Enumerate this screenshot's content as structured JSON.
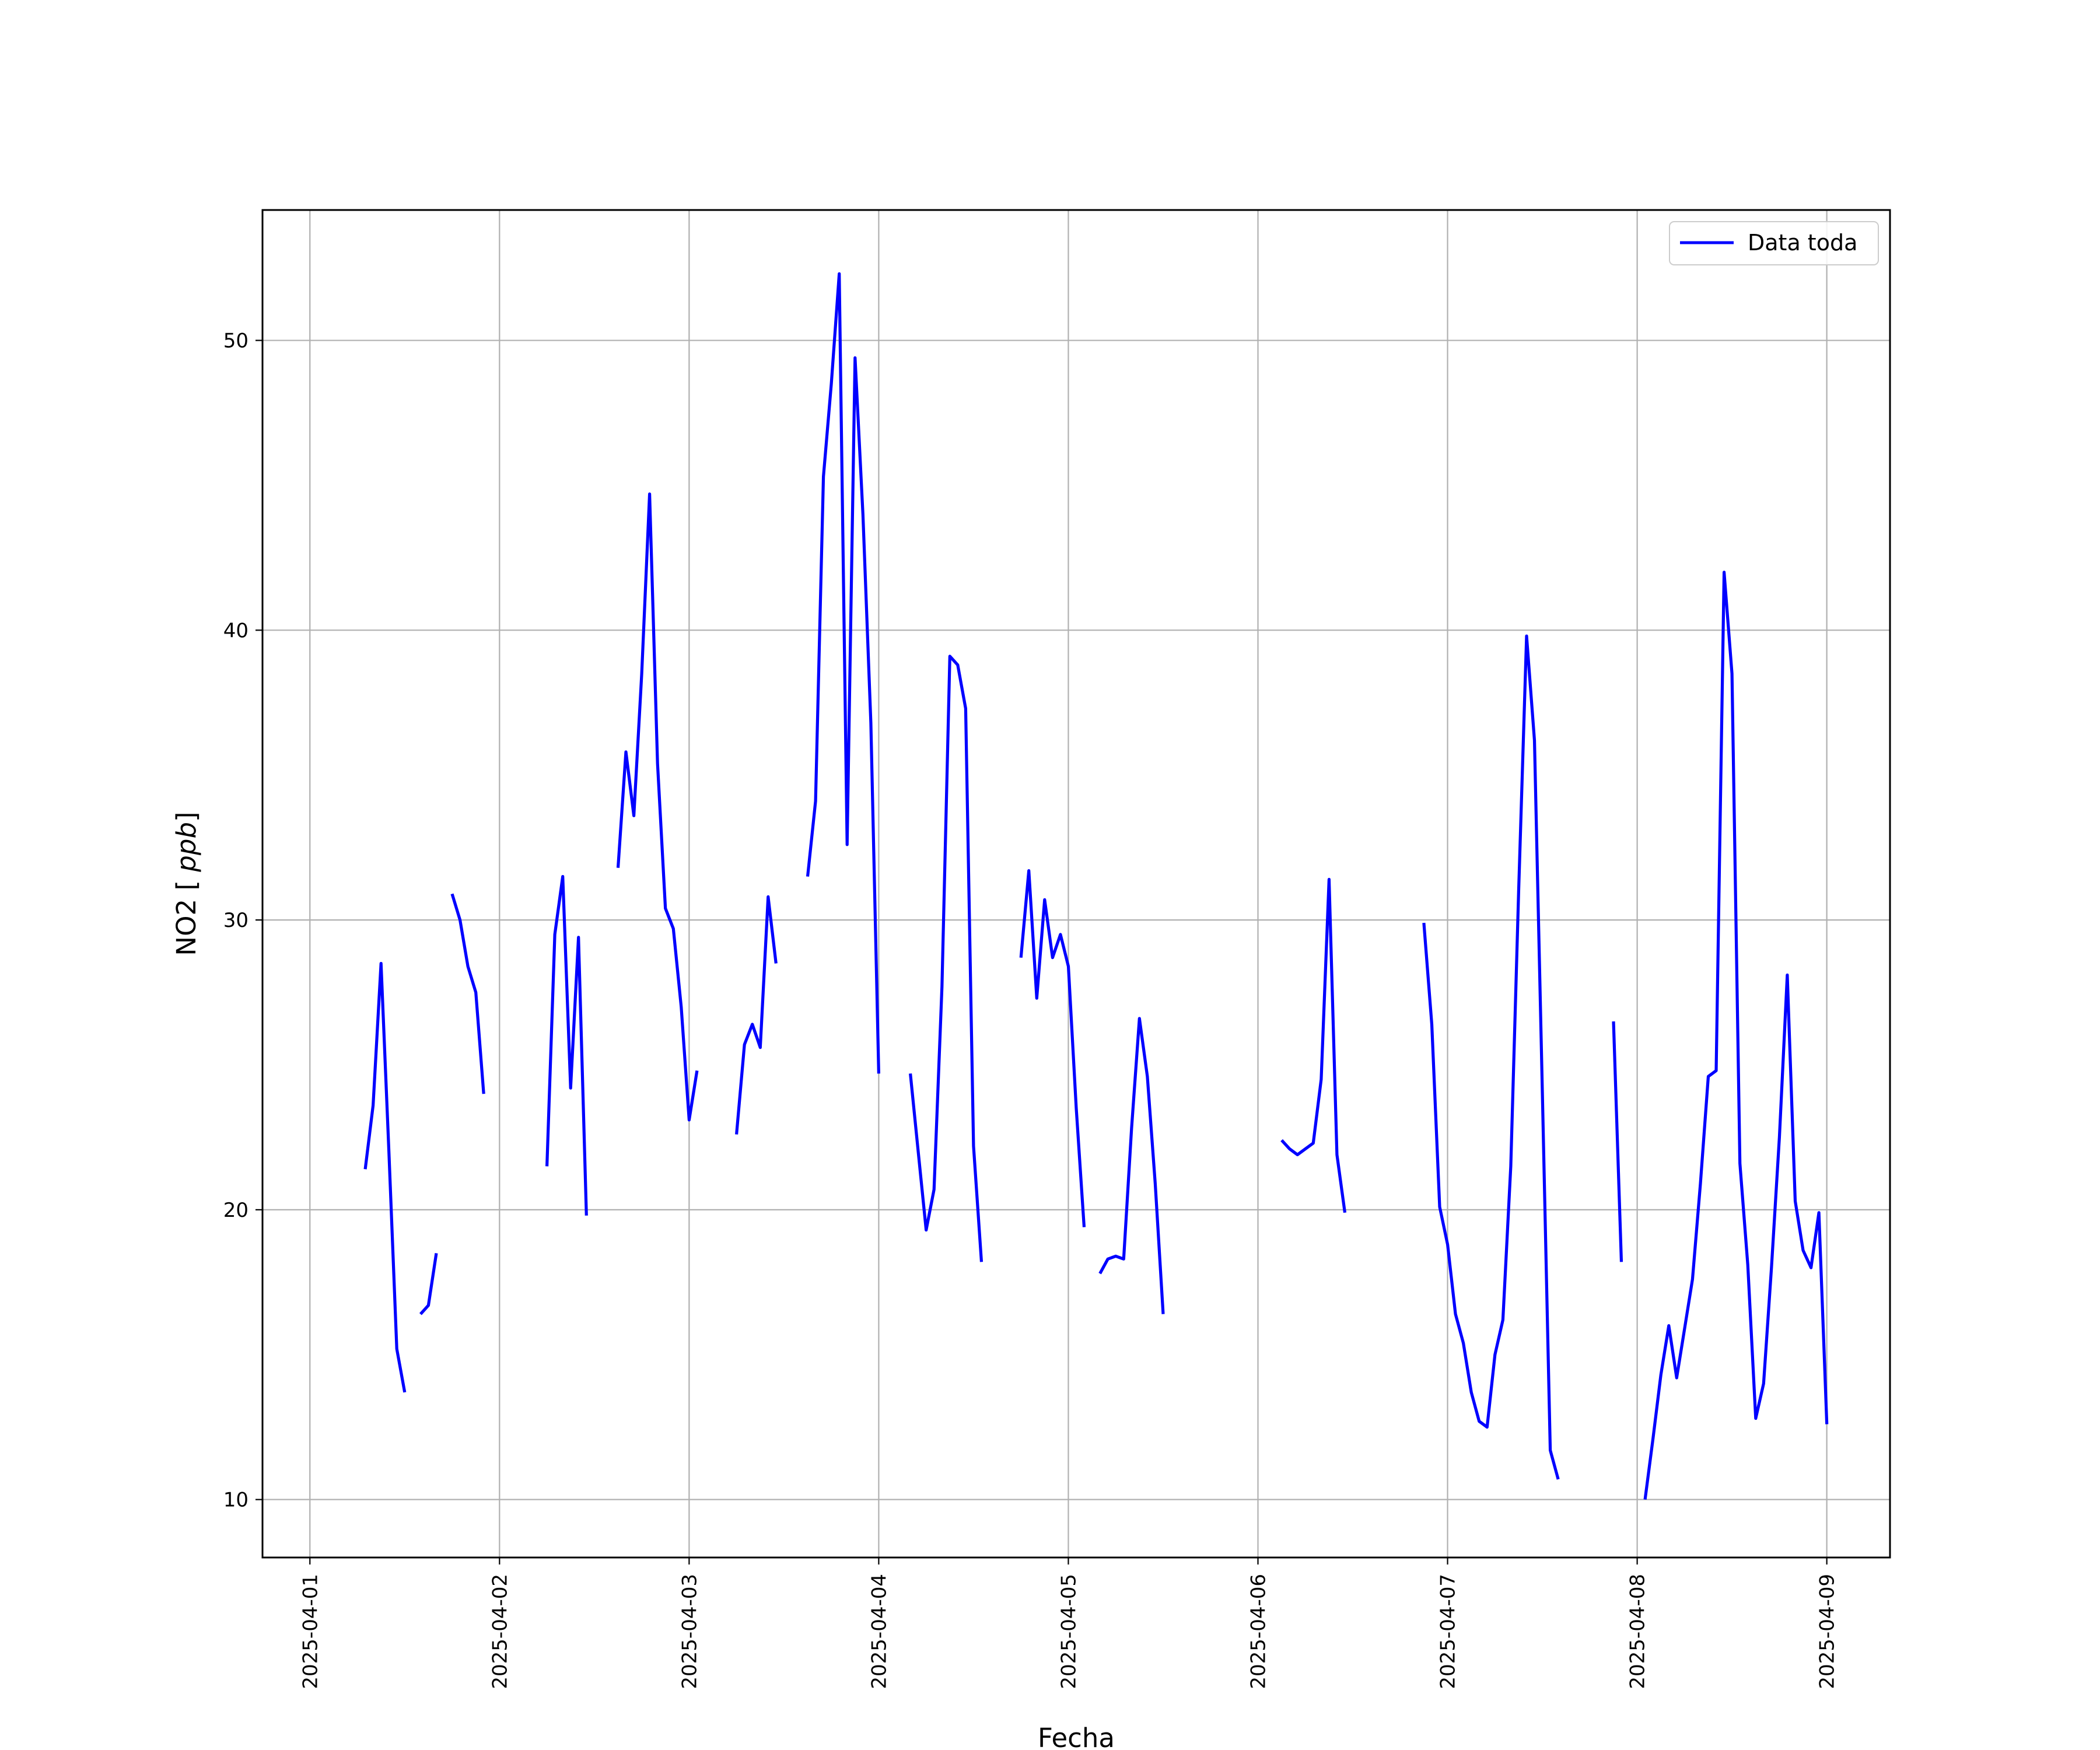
{
  "chart_data": {
    "type": "line",
    "xlabel": "Fecha",
    "ylabel": "NO2 [ppb]",
    "x_type": "date",
    "xlim": [
      "2025-03-31T18:00",
      "2025-04-09T08:00"
    ],
    "ylim": [
      8,
      54.5
    ],
    "x_ticks": [
      "2025-04-01",
      "2025-04-02",
      "2025-04-03",
      "2025-04-04",
      "2025-04-05",
      "2025-04-06",
      "2025-04-07",
      "2025-04-08",
      "2025-04-09"
    ],
    "y_ticks": [
      10,
      20,
      30,
      40,
      50
    ],
    "grid": true,
    "legend_position": "top-right",
    "series": [
      {
        "name": "Data toda",
        "color": "#0000ff",
        "segments": [
          [
            [
              "2025-04-01T07:00",
              21.4
            ],
            [
              "2025-04-01T08:00",
              23.6
            ],
            [
              "2025-04-01T09:00",
              28.5
            ],
            [
              "2025-04-01T10:00",
              22.0
            ],
            [
              "2025-04-01T11:00",
              15.2
            ],
            [
              "2025-04-01T12:00",
              13.7
            ]
          ],
          [
            [
              "2025-04-01T14:00",
              16.4
            ],
            [
              "2025-04-01T15:00",
              16.7
            ],
            [
              "2025-04-01T16:00",
              18.5
            ]
          ],
          [
            [
              "2025-04-01T18:00",
              30.9
            ],
            [
              "2025-04-01T19:00",
              30.0
            ],
            [
              "2025-04-01T20:00",
              28.4
            ],
            [
              "2025-04-01T21:00",
              27.5
            ],
            [
              "2025-04-01T22:00",
              24.0
            ]
          ],
          [
            [
              "2025-04-02T06:00",
              21.5
            ],
            [
              "2025-04-02T07:00",
              29.5
            ],
            [
              "2025-04-02T08:00",
              31.5
            ],
            [
              "2025-04-02T09:00",
              24.2
            ],
            [
              "2025-04-02T10:00",
              29.4
            ],
            [
              "2025-04-02T11:00",
              19.8
            ]
          ],
          [
            [
              "2025-04-02T15:00",
              31.8
            ],
            [
              "2025-04-02T16:00",
              35.8
            ],
            [
              "2025-04-02T17:00",
              33.6
            ],
            [
              "2025-04-02T18:00",
              38.5
            ],
            [
              "2025-04-02T19:00",
              44.7
            ],
            [
              "2025-04-02T20:00",
              35.4
            ],
            [
              "2025-04-02T21:00",
              30.4
            ],
            [
              "2025-04-02T22:00",
              29.7
            ],
            [
              "2025-04-02T23:00",
              27.0
            ],
            [
              "2025-04-03T00:00",
              23.1
            ],
            [
              "2025-04-03T01:00",
              24.8
            ]
          ],
          [
            [
              "2025-04-03T06:00",
              22.6
            ],
            [
              "2025-04-03T07:00",
              25.7
            ],
            [
              "2025-04-03T08:00",
              26.4
            ],
            [
              "2025-04-03T09:00",
              25.6
            ],
            [
              "2025-04-03T10:00",
              30.8
            ],
            [
              "2025-04-03T11:00",
              28.5
            ]
          ],
          [
            [
              "2025-04-03T15:00",
              31.5
            ],
            [
              "2025-04-03T16:00",
              34.1
            ],
            [
              "2025-04-03T17:00",
              45.3
            ],
            [
              "2025-04-03T18:00",
              48.5
            ],
            [
              "2025-04-03T19:00",
              52.3
            ],
            [
              "2025-04-03T20:00",
              32.6
            ],
            [
              "2025-04-03T21:00",
              49.4
            ],
            [
              "2025-04-03T22:00",
              44.0
            ],
            [
              "2025-04-03T23:00",
              36.8
            ],
            [
              "2025-04-04T00:00",
              24.7
            ]
          ],
          [
            [
              "2025-04-04T04:00",
              24.7
            ],
            [
              "2025-04-04T05:00",
              22.0
            ],
            [
              "2025-04-04T06:00",
              19.3
            ],
            [
              "2025-04-04T07:00",
              20.7
            ],
            [
              "2025-04-04T08:00",
              27.7
            ],
            [
              "2025-04-04T09:00",
              39.1
            ],
            [
              "2025-04-04T10:00",
              38.8
            ],
            [
              "2025-04-04T11:00",
              37.3
            ],
            [
              "2025-04-04T12:00",
              22.2
            ],
            [
              "2025-04-04T13:00",
              18.2
            ]
          ],
          [
            [
              "2025-04-04T18:00",
              28.7
            ],
            [
              "2025-04-04T19:00",
              31.7
            ],
            [
              "2025-04-04T20:00",
              27.3
            ],
            [
              "2025-04-04T21:00",
              30.7
            ],
            [
              "2025-04-04T22:00",
              28.7
            ],
            [
              "2025-04-04T23:00",
              29.5
            ],
            [
              "2025-04-05T00:00",
              28.4
            ],
            [
              "2025-04-05T01:00",
              23.5
            ],
            [
              "2025-04-05T02:00",
              19.4
            ]
          ],
          [
            [
              "2025-04-05T04:00",
              17.8
            ],
            [
              "2025-04-05T05:00",
              18.3
            ],
            [
              "2025-04-05T06:00",
              18.4
            ],
            [
              "2025-04-05T07:00",
              18.3
            ],
            [
              "2025-04-05T08:00",
              22.8
            ],
            [
              "2025-04-05T09:00",
              26.6
            ],
            [
              "2025-04-05T10:00",
              24.6
            ],
            [
              "2025-04-05T11:00",
              20.9
            ],
            [
              "2025-04-05T12:00",
              16.4
            ]
          ],
          [
            [
              "2025-04-06T03:00",
              22.4
            ],
            [
              "2025-04-06T04:00",
              22.1
            ],
            [
              "2025-04-06T05:00",
              21.9
            ],
            [
              "2025-04-06T06:00",
              22.1
            ],
            [
              "2025-04-06T07:00",
              22.3
            ],
            [
              "2025-04-06T08:00",
              24.5
            ],
            [
              "2025-04-06T09:00",
              31.4
            ],
            [
              "2025-04-06T10:00",
              21.9
            ],
            [
              "2025-04-06T11:00",
              19.9
            ]
          ],
          [
            [
              "2025-04-06T21:00",
              29.9
            ],
            [
              "2025-04-06T22:00",
              26.4
            ],
            [
              "2025-04-06T23:00",
              20.1
            ],
            [
              "2025-04-07T00:00",
              18.8
            ],
            [
              "2025-04-07T01:00",
              16.4
            ],
            [
              "2025-04-07T02:00",
              15.4
            ],
            [
              "2025-04-07T03:00",
              13.7
            ],
            [
              "2025-04-07T04:00",
              12.7
            ],
            [
              "2025-04-07T05:00",
              12.5
            ],
            [
              "2025-04-07T06:00",
              15.0
            ],
            [
              "2025-04-07T07:00",
              16.2
            ],
            [
              "2025-04-07T08:00",
              21.5
            ],
            [
              "2025-04-07T09:00",
              31.0
            ],
            [
              "2025-04-07T10:00",
              39.8
            ],
            [
              "2025-04-07T11:00",
              36.2
            ],
            [
              "2025-04-07T12:00",
              24.0
            ],
            [
              "2025-04-07T13:00",
              11.7
            ],
            [
              "2025-04-07T14:00",
              10.7
            ]
          ],
          [
            [
              "2025-04-07T21:00",
              26.5
            ],
            [
              "2025-04-07T22:00",
              18.2
            ]
          ],
          [
            [
              "2025-04-08T01:00",
              10.0
            ],
            [
              "2025-04-08T02:00",
              12.1
            ],
            [
              "2025-04-08T03:00",
              14.3
            ],
            [
              "2025-04-08T04:00",
              16.0
            ],
            [
              "2025-04-08T05:00",
              14.2
            ],
            [
              "2025-04-08T06:00",
              15.9
            ],
            [
              "2025-04-08T07:00",
              17.6
            ],
            [
              "2025-04-08T08:00",
              20.9
            ],
            [
              "2025-04-08T09:00",
              24.6
            ],
            [
              "2025-04-08T10:00",
              24.8
            ],
            [
              "2025-04-08T11:00",
              42.0
            ],
            [
              "2025-04-08T12:00",
              38.5
            ],
            [
              "2025-04-08T13:00",
              21.6
            ],
            [
              "2025-04-08T14:00",
              18.1
            ],
            [
              "2025-04-08T15:00",
              12.8
            ],
            [
              "2025-04-08T16:00",
              14.0
            ],
            [
              "2025-04-08T17:00",
              18.0
            ],
            [
              "2025-04-08T18:00",
              22.5
            ],
            [
              "2025-04-08T19:00",
              28.1
            ],
            [
              "2025-04-08T20:00",
              20.3
            ],
            [
              "2025-04-08T21:00",
              18.6
            ],
            [
              "2025-04-08T22:00",
              18.0
            ],
            [
              "2025-04-08T23:00",
              19.9
            ],
            [
              "2025-04-09T00:00",
              12.6
            ]
          ]
        ]
      }
    ]
  }
}
